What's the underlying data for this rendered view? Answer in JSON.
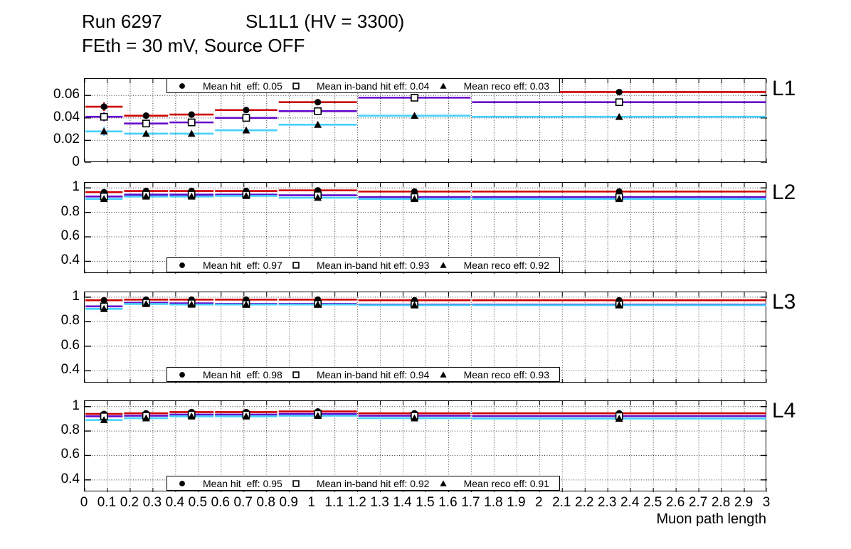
{
  "header": {
    "run_title": "Run 6297",
    "chamber_title": "SL1L1 (HV = 3300)",
    "subtitle": "FEth = 30 mV, Source OFF"
  },
  "x_axis": {
    "title": "Muon path length",
    "min": 0,
    "max": 3,
    "tick_step": 0.1,
    "tick_labels": [
      "0",
      "0.1",
      "0.2",
      "0.3",
      "0.4",
      "0.5",
      "0.6",
      "0.7",
      "0.8",
      "0.9",
      "1",
      "1.1",
      "1.2",
      "1.3",
      "1.4",
      "1.5",
      "1.6",
      "1.7",
      "1.8",
      "1.9",
      "2",
      "2.1",
      "2.2",
      "2.3",
      "2.4",
      "2.5",
      "2.6",
      "2.7",
      "2.8",
      "2.9",
      "3"
    ]
  },
  "colors": {
    "hit": "#CC0000",
    "inband": "#6609CC",
    "reco": "#45D0FA",
    "marker": "#000000"
  },
  "chart_data": [
    {
      "type": "line",
      "panel_label": "L1",
      "x_bin_edges": [
        0,
        0.17,
        0.37,
        0.57,
        0.85,
        1.2,
        1.7,
        3.0
      ],
      "ylim": [
        0,
        0.0747
      ],
      "yticks": [
        0,
        0.02,
        0.04,
        0.06
      ],
      "ytick_labels": [
        "0",
        "0.02",
        "0.04",
        "0.06"
      ],
      "grid": true,
      "legend": {
        "position": "top",
        "entries": [
          {
            "marker": "circle",
            "label": "Mean hit  eff: 0.05"
          },
          {
            "marker": "square",
            "label": "Mean in-band hit eff: 0.04"
          },
          {
            "marker": "triangle",
            "label": "Mean reco eff: 0.03"
          }
        ]
      },
      "series": [
        {
          "name": "Mean hit eff",
          "marker": "circle",
          "color_key": "hit",
          "values": [
            0.05,
            0.042,
            0.043,
            0.047,
            0.054,
            0.065,
            0.063
          ],
          "yerr": [
            0.004,
            0.0025,
            0.0025,
            0.0025,
            0.002,
            0.002,
            0.0025
          ]
        },
        {
          "name": "Mean in-band hit eff",
          "marker": "square",
          "color_key": "inband",
          "values": [
            0.041,
            0.035,
            0.036,
            0.04,
            0.046,
            0.058,
            0.054
          ],
          "yerr": [
            0.004,
            0.0025,
            0.0025,
            0.0025,
            0.002,
            0.002,
            0.0025
          ]
        },
        {
          "name": "Mean reco eff",
          "marker": "triangle",
          "color_key": "reco",
          "values": [
            0.028,
            0.026,
            0.026,
            0.029,
            0.034,
            0.042,
            0.041
          ],
          "yerr": [
            0.004,
            0.0025,
            0.0025,
            0.0025,
            0.002,
            0.002,
            0.0025
          ]
        }
      ]
    },
    {
      "type": "line",
      "panel_label": "L2",
      "x_bin_edges": [
        0,
        0.17,
        0.37,
        0.57,
        0.85,
        1.2,
        1.7,
        3.0
      ],
      "ylim": [
        0.298,
        1.042
      ],
      "yticks": [
        0.4,
        0.6,
        0.8,
        1.0
      ],
      "ytick_labels": [
        "0.4",
        "0.6",
        "0.8",
        "1"
      ],
      "grid": true,
      "legend": {
        "position": "bottom",
        "entries": [
          {
            "marker": "circle",
            "label": "Mean hit  eff: 0.97"
          },
          {
            "marker": "square",
            "label": "Mean in-band hit eff: 0.93"
          },
          {
            "marker": "triangle",
            "label": "Mean reco eff: 0.92"
          }
        ]
      },
      "series": [
        {
          "name": "Mean hit eff",
          "marker": "circle",
          "color_key": "hit",
          "values": [
            0.965,
            0.975,
            0.975,
            0.975,
            0.98,
            0.97,
            0.97
          ],
          "yerr": [
            0.02,
            0.01,
            0.008,
            0.008,
            0.006,
            0.005,
            0.004
          ]
        },
        {
          "name": "Mean in-band hit eff",
          "marker": "square",
          "color_key": "inband",
          "values": [
            0.93,
            0.945,
            0.945,
            0.945,
            0.94,
            0.925,
            0.925
          ],
          "yerr": [
            0.02,
            0.01,
            0.008,
            0.008,
            0.006,
            0.005,
            0.004
          ]
        },
        {
          "name": "Mean reco eff",
          "marker": "triangle",
          "color_key": "reco",
          "values": [
            0.91,
            0.93,
            0.93,
            0.935,
            0.92,
            0.91,
            0.91
          ],
          "yerr": [
            0.02,
            0.01,
            0.008,
            0.008,
            0.006,
            0.005,
            0.004
          ]
        }
      ]
    },
    {
      "type": "line",
      "panel_label": "L3",
      "x_bin_edges": [
        0,
        0.17,
        0.37,
        0.57,
        0.85,
        1.2,
        1.7,
        3.0
      ],
      "ylim": [
        0.298,
        1.04
      ],
      "yticks": [
        0.4,
        0.6,
        0.8,
        1.0
      ],
      "ytick_labels": [
        "0.4",
        "0.6",
        "0.8",
        "1"
      ],
      "grid": true,
      "legend": {
        "position": "bottom",
        "entries": [
          {
            "marker": "circle",
            "label": "Mean hit  eff: 0.98"
          },
          {
            "marker": "square",
            "label": "Mean in-band hit eff: 0.94"
          },
          {
            "marker": "triangle",
            "label": "Mean reco eff: 0.93"
          }
        ]
      },
      "series": [
        {
          "name": "Mean hit eff",
          "marker": "circle",
          "color_key": "hit",
          "values": [
            0.975,
            0.98,
            0.98,
            0.98,
            0.98,
            0.975,
            0.975
          ],
          "yerr": [
            0.02,
            0.01,
            0.008,
            0.008,
            0.006,
            0.005,
            0.004
          ]
        },
        {
          "name": "Mean in-band hit eff",
          "marker": "square",
          "color_key": "inband",
          "values": [
            0.925,
            0.955,
            0.95,
            0.945,
            0.945,
            0.94,
            0.94
          ],
          "yerr": [
            0.02,
            0.01,
            0.008,
            0.008,
            0.006,
            0.005,
            0.004
          ]
        },
        {
          "name": "Mean reco eff",
          "marker": "triangle",
          "color_key": "reco",
          "values": [
            0.905,
            0.945,
            0.94,
            0.94,
            0.94,
            0.935,
            0.935
          ],
          "yerr": [
            0.02,
            0.01,
            0.008,
            0.008,
            0.006,
            0.005,
            0.004
          ]
        }
      ]
    },
    {
      "type": "line",
      "panel_label": "L4",
      "x_bin_edges": [
        0,
        0.17,
        0.37,
        0.57,
        0.85,
        1.2,
        1.7,
        3.0
      ],
      "ylim": [
        0.3,
        1.045
      ],
      "yticks": [
        0.4,
        0.6,
        0.8,
        1.0
      ],
      "ytick_labels": [
        "0.4",
        "0.6",
        "0.8",
        "1"
      ],
      "grid": true,
      "legend": {
        "position": "bottom",
        "entries": [
          {
            "marker": "circle",
            "label": "Mean hit  eff: 0.95"
          },
          {
            "marker": "square",
            "label": "Mean in-band hit eff: 0.92"
          },
          {
            "marker": "triangle",
            "label": "Mean reco eff: 0.91"
          }
        ]
      },
      "series": [
        {
          "name": "Mean hit eff",
          "marker": "circle",
          "color_key": "hit",
          "values": [
            0.94,
            0.945,
            0.955,
            0.955,
            0.96,
            0.945,
            0.945
          ],
          "yerr": [
            0.025,
            0.012,
            0.008,
            0.008,
            0.006,
            0.005,
            0.004
          ]
        },
        {
          "name": "Mean in-band hit eff",
          "marker": "square",
          "color_key": "inband",
          "values": [
            0.92,
            0.925,
            0.935,
            0.935,
            0.94,
            0.925,
            0.922
          ],
          "yerr": [
            0.025,
            0.012,
            0.008,
            0.008,
            0.006,
            0.005,
            0.004
          ]
        },
        {
          "name": "Mean reco eff",
          "marker": "triangle",
          "color_key": "reco",
          "values": [
            0.89,
            0.905,
            0.92,
            0.92,
            0.925,
            0.905,
            0.902
          ],
          "yerr": [
            0.025,
            0.012,
            0.008,
            0.008,
            0.006,
            0.005,
            0.004
          ]
        }
      ]
    }
  ]
}
